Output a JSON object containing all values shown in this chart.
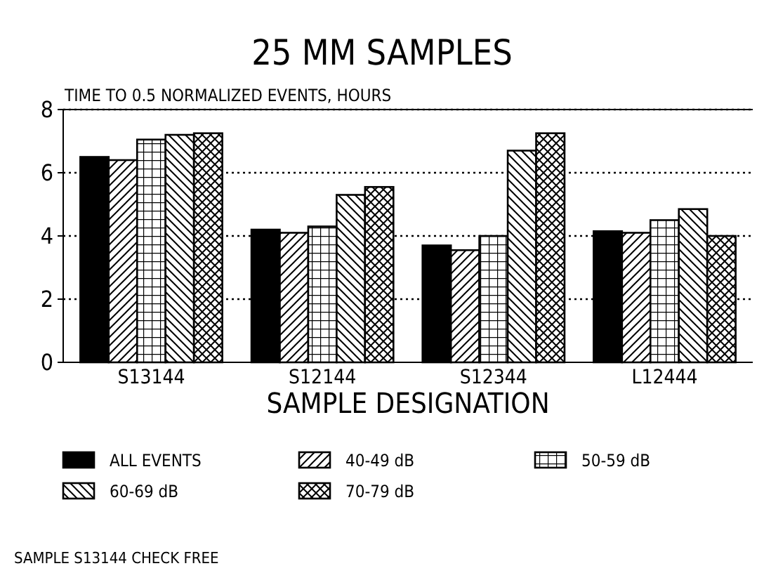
{
  "chart_data": {
    "type": "bar",
    "title": "25 MM SAMPLES",
    "ylabel": "TIME TO 0.5 NORMALIZED EVENTS, HOURS",
    "xlabel": "SAMPLE DESIGNATION",
    "categories": [
      "S13144",
      "S12144",
      "S12344",
      "L12444"
    ],
    "series": [
      {
        "name": "ALL EVENTS",
        "color": "#000000",
        "values": [
          6.5,
          4.2,
          3.7,
          4.15
        ]
      },
      {
        "name": "40-49 dB",
        "color": "#000000",
        "values": [
          6.4,
          4.1,
          3.55,
          4.1
        ]
      },
      {
        "name": "50-59 dB",
        "color": "#000000",
        "values": [
          7.05,
          4.3,
          4.0,
          4.5
        ]
      },
      {
        "name": "60-69 dB",
        "color": "#000000",
        "values": [
          7.2,
          5.3,
          6.7,
          4.85
        ]
      },
      {
        "name": "70-79 dB",
        "color": "#000000",
        "values": [
          7.25,
          5.55,
          7.25,
          4.0
        ]
      }
    ],
    "ylim": [
      0,
      8
    ],
    "yticks": [
      0,
      2,
      4,
      6,
      8
    ],
    "grid": "y",
    "legend": "bottom",
    "annotations": [
      "SAMPLE S13144 CHECK FREE"
    ]
  }
}
